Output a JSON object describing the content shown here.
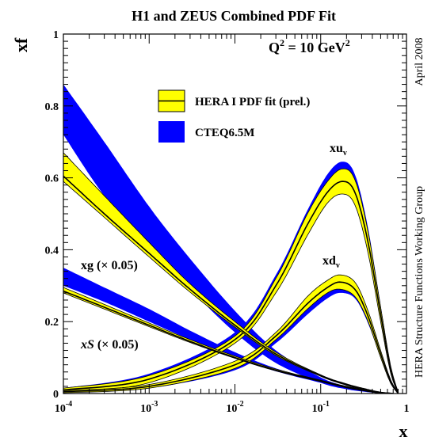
{
  "chart_data": {
    "type": "area",
    "title": "H1 and ZEUS Combined PDF Fit",
    "xlabel": "x",
    "ylabel": "xf",
    "x_scale": "log",
    "xlim": [
      0.0001,
      1
    ],
    "ylim": [
      0,
      1
    ],
    "x_ticks": [
      {
        "base": "10",
        "exp": "-4"
      },
      {
        "base": "10",
        "exp": "-3"
      },
      {
        "base": "10",
        "exp": "-2"
      },
      {
        "base": "10",
        "exp": "-1"
      },
      {
        "base": "1",
        "exp": ""
      }
    ],
    "y_ticks": [
      "0",
      "0.2",
      "0.4",
      "0.6",
      "0.8",
      "1"
    ],
    "scale_label": {
      "prefix": "Q",
      "sup": "2",
      "mid": " = 10 GeV",
      "sup2": "2"
    },
    "side_labels": {
      "date": "April 2008",
      "group": "HERA Structure Functions Working Group"
    },
    "legend": {
      "position": "top-center",
      "entries": [
        {
          "label": "HERA I PDF fit (prel.)",
          "color": "#ffff00"
        },
        {
          "label": "CTEQ6.5M",
          "color": "#0000ff"
        }
      ]
    },
    "curve_labels": {
      "xuv": {
        "base": "xu",
        "sub": "v"
      },
      "xdv": {
        "base": "xd",
        "sub": "v"
      },
      "xg": "xg (× 0.05)",
      "xS": {
        "base": "xS",
        "rest": " (× 0.05)"
      }
    },
    "colors": {
      "hera": "#ffff00",
      "cteq": "#0000ff",
      "line": "#000000"
    },
    "series": [
      {
        "key": "xuv",
        "name": "xu_v",
        "x": [
          0.0001,
          0.001,
          0.01,
          0.03,
          0.07,
          0.12,
          0.18,
          0.25,
          0.35,
          0.5,
          0.65,
          0.8
        ],
        "hera_center": [
          0.01,
          0.04,
          0.15,
          0.3,
          0.47,
          0.56,
          0.59,
          0.56,
          0.43,
          0.22,
          0.07,
          0.002
        ],
        "hera_lo": [
          0.005,
          0.03,
          0.14,
          0.28,
          0.44,
          0.53,
          0.555,
          0.525,
          0.4,
          0.2,
          0.06,
          0.0
        ],
        "hera_hi": [
          0.015,
          0.05,
          0.16,
          0.32,
          0.5,
          0.59,
          0.625,
          0.595,
          0.46,
          0.24,
          0.08,
          0.004
        ],
        "cteq_lo": [
          0.008,
          0.04,
          0.15,
          0.3,
          0.47,
          0.56,
          0.585,
          0.545,
          0.415,
          0.21,
          0.065,
          0.0
        ],
        "cteq_hi": [
          0.015,
          0.055,
          0.17,
          0.33,
          0.51,
          0.61,
          0.645,
          0.61,
          0.47,
          0.245,
          0.08,
          0.003
        ]
      },
      {
        "key": "xdv",
        "name": "xd_v",
        "x": [
          0.0001,
          0.001,
          0.01,
          0.03,
          0.07,
          0.12,
          0.17,
          0.25,
          0.35,
          0.5,
          0.65,
          0.8
        ],
        "hera_center": [
          0.005,
          0.02,
          0.08,
          0.16,
          0.25,
          0.295,
          0.31,
          0.29,
          0.22,
          0.11,
          0.035,
          0.0
        ],
        "hera_lo": [
          0.002,
          0.015,
          0.07,
          0.15,
          0.235,
          0.28,
          0.29,
          0.27,
          0.205,
          0.1,
          0.03,
          0.0
        ],
        "hera_hi": [
          0.008,
          0.025,
          0.09,
          0.17,
          0.27,
          0.315,
          0.33,
          0.31,
          0.235,
          0.12,
          0.04,
          0.002
        ],
        "cteq_lo": [
          0.003,
          0.015,
          0.065,
          0.14,
          0.22,
          0.265,
          0.28,
          0.265,
          0.2,
          0.1,
          0.03,
          0.0
        ],
        "cteq_hi": [
          0.007,
          0.022,
          0.08,
          0.155,
          0.24,
          0.28,
          0.29,
          0.275,
          0.21,
          0.105,
          0.033,
          0.001
        ]
      },
      {
        "key": "xg",
        "name": "xg (× 0.05)",
        "x": [
          0.0001,
          0.0003,
          0.001,
          0.003,
          0.01,
          0.03,
          0.1,
          0.2,
          0.35,
          0.5,
          0.7
        ],
        "hera_center": [
          0.605,
          0.5,
          0.39,
          0.29,
          0.19,
          0.11,
          0.05,
          0.025,
          0.01,
          0.003,
          0.0
        ],
        "hera_lo": [
          0.59,
          0.49,
          0.38,
          0.282,
          0.185,
          0.106,
          0.048,
          0.023,
          0.008,
          0.002,
          0.0
        ],
        "hera_hi": [
          0.67,
          0.55,
          0.42,
          0.305,
          0.2,
          0.115,
          0.052,
          0.027,
          0.012,
          0.004,
          0.001
        ],
        "cteq_lo": [
          0.72,
          0.55,
          0.41,
          0.29,
          0.17,
          0.085,
          0.03,
          0.012,
          0.004,
          0.001,
          0.0
        ],
        "cteq_hi": [
          0.86,
          0.7,
          0.52,
          0.375,
          0.23,
          0.12,
          0.045,
          0.02,
          0.007,
          0.002,
          0.0
        ]
      },
      {
        "key": "xS",
        "name": "xS (× 0.05)",
        "x": [
          0.0001,
          0.0003,
          0.001,
          0.003,
          0.01,
          0.03,
          0.1,
          0.2,
          0.35,
          0.5,
          0.7
        ],
        "hera_center": [
          0.285,
          0.24,
          0.19,
          0.145,
          0.1,
          0.065,
          0.035,
          0.018,
          0.007,
          0.002,
          0.0
        ],
        "hera_lo": [
          0.28,
          0.235,
          0.186,
          0.142,
          0.098,
          0.063,
          0.033,
          0.016,
          0.006,
          0.001,
          0.0
        ],
        "hera_hi": [
          0.295,
          0.248,
          0.196,
          0.15,
          0.104,
          0.068,
          0.037,
          0.02,
          0.008,
          0.003,
          0.001
        ],
        "cteq_lo": [
          0.3,
          0.255,
          0.2,
          0.15,
          0.1,
          0.062,
          0.03,
          0.014,
          0.005,
          0.001,
          0.0
        ],
        "cteq_hi": [
          0.35,
          0.295,
          0.235,
          0.175,
          0.115,
          0.07,
          0.035,
          0.017,
          0.006,
          0.002,
          0.0
        ]
      }
    ]
  }
}
